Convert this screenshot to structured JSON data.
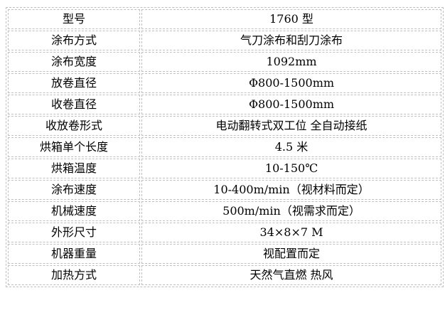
{
  "page": {
    "background_color": "#ffffff",
    "border_color": "#c0c0c0",
    "text_color": "#000000"
  },
  "spec_table": {
    "rows": [
      {
        "label": "型号",
        "value": "1760 型"
      },
      {
        "label": "涂布方式",
        "value": "气刀涂布和刮刀涂布"
      },
      {
        "label": "涂布宽度",
        "value": "1092mm"
      },
      {
        "label": "放卷直径",
        "value": "Φ800-1500mm"
      },
      {
        "label": "收卷直径",
        "value": "Φ800-1500mm"
      },
      {
        "label": "收放卷形式",
        "value": "电动翻转式双工位 全自动接纸"
      },
      {
        "label": "烘箱单个长度",
        "value": "4.5 米"
      },
      {
        "label": "烘箱温度",
        "value": "10-150℃"
      },
      {
        "label": "涂布速度",
        "value": "10-400m/min（视材料而定）"
      },
      {
        "label": "机械速度",
        "value": "500m/min（视需求而定）"
      },
      {
        "label": "外形尺寸",
        "value": "34×8×7 M"
      },
      {
        "label": "机器重量",
        "value": "视配置而定"
      },
      {
        "label": "加热方式",
        "value": "天然气直燃 热风"
      }
    ]
  }
}
